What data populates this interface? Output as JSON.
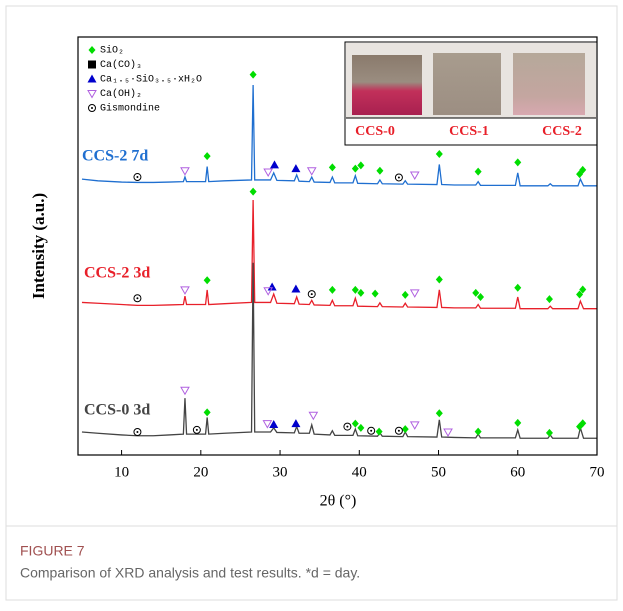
{
  "chart_data": {
    "type": "line",
    "xlabel": "2θ (°)",
    "ylabel": "Intensity (a.u.)",
    "xlim": [
      4.5,
      70
    ],
    "xticks": [
      10,
      20,
      30,
      40,
      50,
      60,
      70
    ],
    "ylim": [
      0,
      100
    ],
    "x": [
      5,
      7,
      10,
      12,
      14,
      16,
      17.8,
      18,
      18.2,
      20.6,
      20.8,
      21,
      23,
      26.4,
      26.6,
      26.8,
      28.8,
      29.2,
      29.6,
      31.8,
      32.1,
      32.4,
      33.7,
      34,
      34.3,
      36.3,
      36.6,
      36.9,
      39.2,
      39.5,
      39.8,
      42.3,
      42.6,
      42.9,
      45.5,
      45.8,
      46.1,
      49.8,
      50.1,
      50.4,
      52,
      54.7,
      55,
      55.3,
      57,
      59.7,
      60,
      60.3,
      63.8,
      64.1,
      64.4,
      66,
      67.6,
      67.9,
      68.3,
      70
    ],
    "series": [
      {
        "name": "CCS-2 7d",
        "color": "#1f6fd0",
        "values": [
          66,
          65.6,
          65.3,
          65.2,
          65.2,
          65.3,
          65.4,
          66.5,
          65.4,
          65.4,
          69,
          65.4,
          65.6,
          65.8,
          88.5,
          65.8,
          65.8,
          67.5,
          65.7,
          65.6,
          67,
          65.5,
          65.4,
          66.5,
          65.3,
          65.2,
          66.5,
          65.1,
          65.1,
          66.8,
          65,
          64.9,
          65.8,
          64.9,
          64.8,
          65.6,
          64.8,
          64.7,
          69.5,
          64.7,
          64.6,
          64.6,
          65.4,
          64.5,
          64.5,
          64.5,
          67.5,
          64.4,
          64.4,
          64.9,
          64.4,
          64.4,
          64.4,
          66,
          64.4,
          64.4
        ]
      },
      {
        "name": "CCS-2 3d",
        "color": "#e8202a",
        "values": [
          36.5,
          36.3,
          36,
          35.8,
          35.8,
          35.9,
          36,
          38,
          36,
          36,
          39.5,
          36,
          36.2,
          36.5,
          61,
          36.5,
          36.5,
          38.5,
          36.3,
          36.2,
          37.8,
          36.1,
          36,
          37,
          35.9,
          35.8,
          37,
          35.7,
          35.7,
          37.5,
          35.6,
          35.5,
          36.4,
          35.5,
          35.4,
          36.3,
          35.4,
          35.3,
          39.5,
          35.3,
          35.2,
          35.2,
          36,
          35.1,
          35.1,
          35.1,
          37.8,
          35,
          35,
          35.6,
          35,
          35,
          35,
          36.8,
          35,
          35
        ]
      },
      {
        "name": "CCS-0 3d",
        "color": "#444444",
        "values": [
          5.5,
          5.2,
          4.8,
          4.6,
          4.6,
          4.8,
          5,
          13.6,
          5,
          5,
          9,
          5,
          5.2,
          5.5,
          46,
          5.5,
          5.5,
          6.5,
          5.4,
          5.3,
          6.8,
          5.2,
          5.2,
          7.2,
          5,
          4.8,
          5.8,
          4.7,
          4.7,
          6.2,
          4.6,
          4.5,
          5.3,
          4.5,
          4.4,
          5.5,
          4.4,
          4.3,
          8.4,
          4.3,
          4.2,
          4.1,
          5,
          4.1,
          4.1,
          4.1,
          6,
          4,
          4,
          4.8,
          4,
          4,
          4,
          6.5,
          4,
          4
        ]
      }
    ],
    "phases": [
      {
        "name": "SiO₂",
        "symbol": "diamond",
        "color": "#00dd00",
        "x": [
          20.8,
          26.6,
          36.6,
          39.5,
          40.2,
          42.6,
          50.1,
          55,
          60,
          67.8,
          68.2,
          20.8,
          26.6,
          36.6,
          39.5,
          40.2,
          42,
          45.8,
          50.1,
          54.7,
          55.3,
          60,
          64,
          67.8,
          68.2,
          20.8,
          39.5,
          40.2,
          42.5,
          45.8,
          50.1,
          55,
          60,
          64,
          67.8,
          68.2
        ],
        "y": [
          71.5,
          91,
          68.8,
          68.5,
          69.3,
          68,
          72,
          67.8,
          70,
          67.2,
          68.2,
          41.8,
          63,
          39.5,
          39.5,
          38.8,
          38.6,
          38.3,
          42,
          38.8,
          37.8,
          40,
          37.3,
          38.4,
          39.6,
          10.2,
          7.5,
          6.5,
          5.6,
          6.2,
          10,
          5.6,
          7.7,
          5.3,
          6.8,
          7.6
        ]
      },
      {
        "name": "Ca(CO)₃",
        "symbol": "square",
        "color": "#000000",
        "x": [],
        "y": []
      },
      {
        "name": "Ca₁.₅·SiO₃.₅·xH₂O",
        "symbol": "triangle",
        "color": "#0000cc",
        "x": [
          29.3,
          32,
          29,
          32,
          29.2,
          32
        ],
        "y": [
          69.4,
          68.5,
          40.2,
          39.7,
          7.3,
          7.5
        ]
      },
      {
        "name": "Ca(OH)₂",
        "symbol": "triangle-down",
        "color": "#b060e0",
        "x": [
          18,
          28.5,
          34,
          47,
          18,
          28.5,
          47,
          18,
          28.4,
          34.2,
          47,
          51.2
        ],
        "y": [
          68,
          67.7,
          68,
          67,
          39.5,
          39.3,
          38.8,
          15.5,
          7.5,
          9.5,
          7.2,
          5.5
        ]
      },
      {
        "name": "Gismondine",
        "symbol": "circle-dot",
        "color": "#000000",
        "x": [
          12,
          45,
          12,
          34,
          12,
          19.5,
          38.5,
          41.5,
          45
        ],
        "y": [
          66.5,
          66.4,
          37.5,
          38.5,
          5.5,
          6,
          6.8,
          5.8,
          5.8
        ]
      }
    ],
    "inset_labels": [
      "CCS-0",
      "CCS-1",
      "CCS-2"
    ]
  },
  "caption": {
    "label": "FIGURE 7",
    "text": "Comparison of XRD analysis and test results. *d = day."
  }
}
